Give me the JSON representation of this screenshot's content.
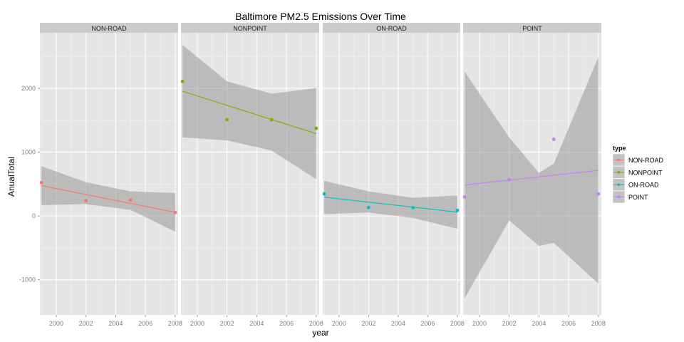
{
  "chart_data": {
    "type": "scatter",
    "title": "Baltimore PM2.5 Emissions Over Time",
    "xlabel": "year",
    "ylabel": "AnualTotal",
    "xlim": [
      1998.9,
      2008.2
    ],
    "ylim": [
      -1550,
      2870
    ],
    "x_ticks": [
      2000,
      2002,
      2004,
      2006,
      2008
    ],
    "y_ticks": [
      -1000,
      0,
      1000,
      2000
    ],
    "grid": true,
    "legend": {
      "title": "type",
      "placement": "right",
      "entries": [
        "NON-ROAD",
        "NONPOINT",
        "ON-ROAD",
        "POINT"
      ]
    },
    "facets": [
      {
        "name": "NON-ROAD",
        "color": "#F8766D",
        "points": [
          [
            1999,
            522
          ],
          [
            2002,
            241
          ],
          [
            2005,
            249
          ],
          [
            2008,
            55
          ]
        ],
        "fit": [
          [
            1999,
            475
          ],
          [
            2008,
            58
          ]
        ],
        "band_upper": [
          [
            1999,
            780
          ],
          [
            2002,
            530
          ],
          [
            2005,
            385
          ],
          [
            2008,
            360
          ]
        ],
        "band_lower": [
          [
            1999,
            170
          ],
          [
            2002,
            185
          ],
          [
            2005,
            95
          ],
          [
            2008,
            -245
          ]
        ]
      },
      {
        "name": "NONPOINT",
        "color": "#7CAE00",
        "points": [
          [
            1999,
            2108
          ],
          [
            2002,
            1509
          ],
          [
            2005,
            1509
          ],
          [
            2008,
            1373
          ]
        ],
        "fit": [
          [
            1999,
            1955
          ],
          [
            2008,
            1290
          ]
        ],
        "band_upper": [
          [
            1999,
            2680
          ],
          [
            2002,
            2110
          ],
          [
            2005,
            1915
          ],
          [
            2008,
            2005
          ]
        ],
        "band_lower": [
          [
            1999,
            1230
          ],
          [
            2002,
            1185
          ],
          [
            2005,
            1025
          ],
          [
            2008,
            575
          ]
        ]
      },
      {
        "name": "ON-ROAD",
        "color": "#00BFC4",
        "points": [
          [
            1999,
            347
          ],
          [
            2002,
            134
          ],
          [
            2005,
            130
          ],
          [
            2008,
            88
          ]
        ],
        "fit": [
          [
            1999,
            295
          ],
          [
            2008,
            60
          ]
        ],
        "band_upper": [
          [
            1999,
            550
          ],
          [
            2002,
            385
          ],
          [
            2005,
            285
          ],
          [
            2008,
            320
          ]
        ],
        "band_lower": [
          [
            1999,
            30
          ],
          [
            2002,
            55
          ],
          [
            2005,
            -30
          ],
          [
            2008,
            -200
          ]
        ]
      },
      {
        "name": "POINT",
        "color": "#C77CFF",
        "points": [
          [
            1999,
            297
          ],
          [
            2002,
            569
          ],
          [
            2005,
            1202
          ],
          [
            2008,
            345
          ]
        ],
        "fit": [
          [
            1999,
            485
          ],
          [
            2008,
            715
          ]
        ],
        "band_upper": [
          [
            1999,
            2260
          ],
          [
            2002,
            1230
          ],
          [
            2004,
            675
          ],
          [
            2005,
            820
          ],
          [
            2008,
            2490
          ]
        ],
        "band_lower": [
          [
            1999,
            -1290
          ],
          [
            2002,
            -70
          ],
          [
            2004,
            -470
          ],
          [
            2005,
            -420
          ],
          [
            2008,
            -1060
          ]
        ]
      }
    ]
  }
}
